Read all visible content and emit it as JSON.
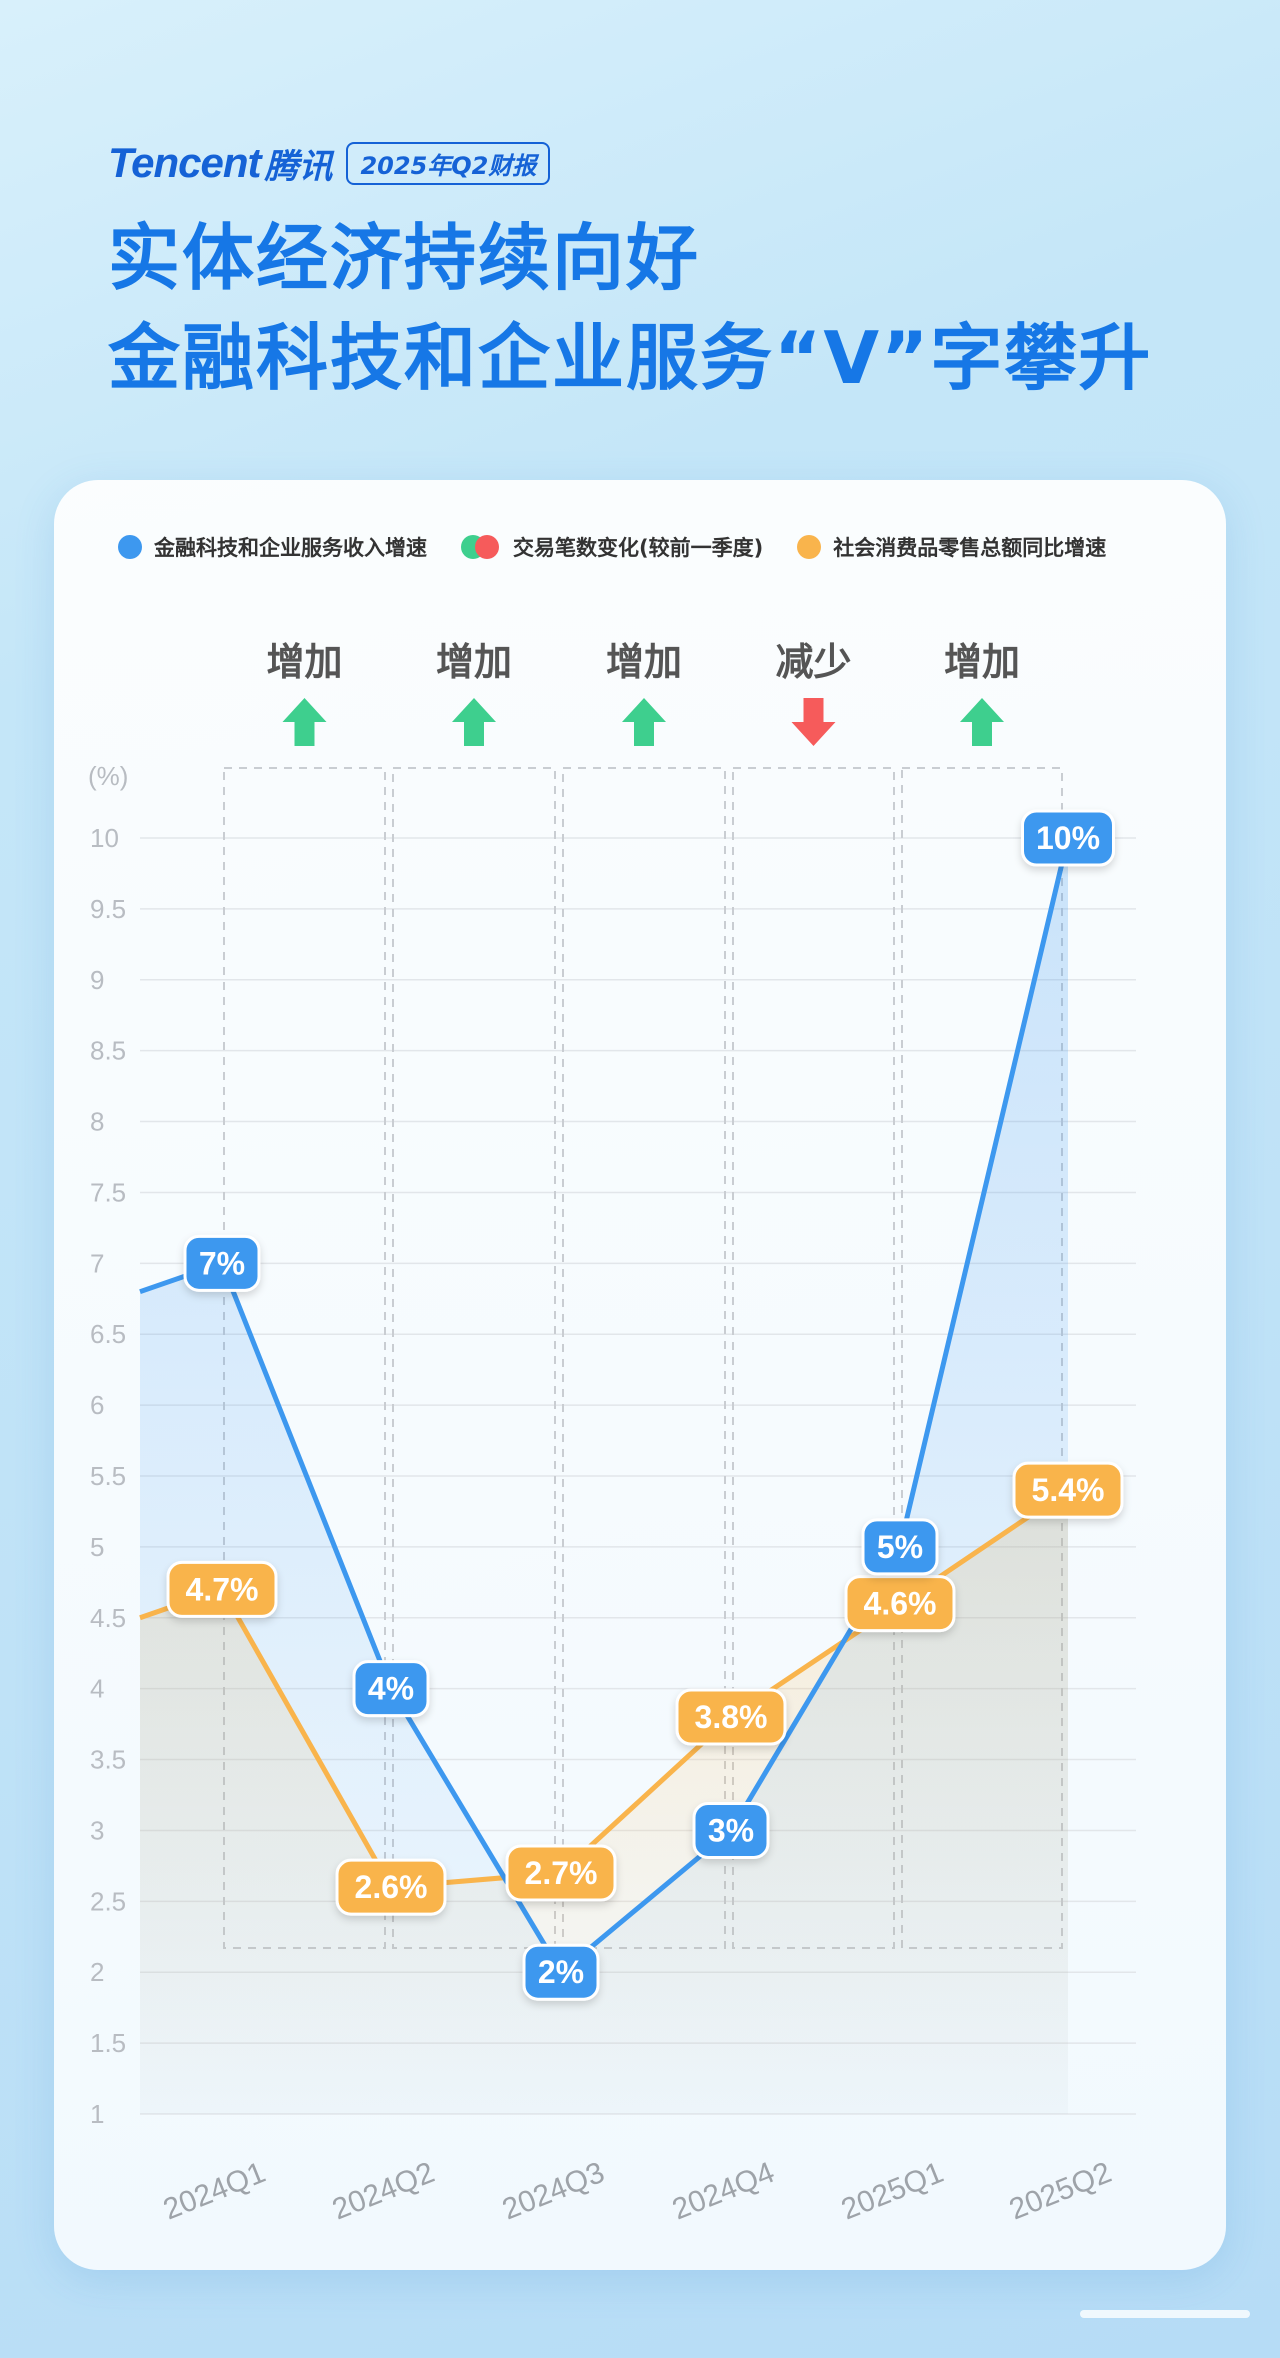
{
  "header": {
    "logo": "Tencent",
    "logo_cn": "腾讯",
    "badge": "2025年Q2财报",
    "title_line1": "实体经济持续向好",
    "title_line2": "金融科技和企业服务“V”字攀升"
  },
  "legend": {
    "fintech": "金融科技和企业服务收入增速",
    "transactions": "交易笔数变化(较前一季度)",
    "retail": "社会消费品零售总额同比增速"
  },
  "colors": {
    "fintech": "#3d98ef",
    "retail": "#f9b44c",
    "increase": "#3ecf8e",
    "decrease": "#f65b5b"
  },
  "chart_data": {
    "type": "line",
    "categories": [
      "2024Q1",
      "2024Q2",
      "2024Q3",
      "2024Q4",
      "2025Q1",
      "2025Q2"
    ],
    "ylabel": "(%)",
    "ylim": [
      1,
      10
    ],
    "yticks": [
      "1",
      "1.5",
      "2",
      "2.5",
      "3",
      "3.5",
      "4",
      "4.5",
      "5",
      "5.5",
      "6",
      "6.5",
      "7",
      "7.5",
      "8",
      "8.5",
      "9",
      "9.5",
      "10"
    ],
    "grid": true,
    "legend_position": "top",
    "series": [
      {
        "name": "金融科技和企业服务收入增速",
        "values": [
          7,
          4,
          2,
          3,
          5,
          10
        ],
        "labels": [
          "7%",
          "4%",
          "2%",
          "3%",
          "5%",
          "10%"
        ]
      },
      {
        "name": "社会消费品零售总额同比增速",
        "values": [
          4.7,
          2.6,
          2.7,
          3.8,
          4.6,
          5.4
        ],
        "labels": [
          "4.7%",
          "2.6%",
          "2.7%",
          "3.8%",
          "4.6%",
          "5.4%"
        ]
      }
    ],
    "transactions": [
      {
        "label": "增加",
        "direction": "up"
      },
      {
        "label": "增加",
        "direction": "up"
      },
      {
        "label": "增加",
        "direction": "up"
      },
      {
        "label": "减少",
        "direction": "down"
      },
      {
        "label": "增加",
        "direction": "up"
      }
    ]
  }
}
